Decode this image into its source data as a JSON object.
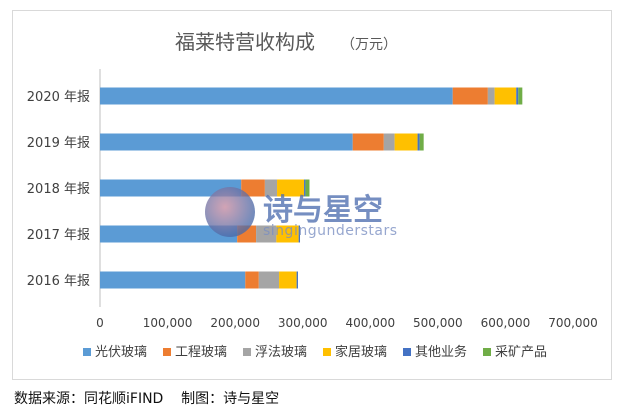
{
  "chart_data": {
    "type": "bar",
    "orientation": "horizontal",
    "stacked": true,
    "title": "福莱特营收构成",
    "title_unit": "（万元）",
    "categories": [
      "2020 年报",
      "2019 年报",
      "2018 年报",
      "2017 年报",
      "2016 年报"
    ],
    "series": [
      {
        "name": "光伏玻璃",
        "color": "#5b9bd5",
        "values": [
          522000,
          374000,
          209000,
          203000,
          215000
        ]
      },
      {
        "name": "工程玻璃",
        "color": "#ed7d31",
        "values": [
          52000,
          46000,
          35000,
          28000,
          20000
        ]
      },
      {
        "name": "浮法玻璃",
        "color": "#a5a5a5",
        "values": [
          10000,
          16000,
          18000,
          30000,
          30000
        ]
      },
      {
        "name": "家居玻璃",
        "color": "#ffc000",
        "values": [
          32000,
          34000,
          40000,
          33000,
          26000
        ]
      },
      {
        "name": "其他业务",
        "color": "#4472c4",
        "values": [
          3000,
          3000,
          2000,
          2000,
          2000
        ]
      },
      {
        "name": "采矿产品",
        "color": "#70ad47",
        "values": [
          6000,
          6000,
          6000,
          0,
          0
        ]
      }
    ],
    "xlim": [
      0,
      700000
    ],
    "xticks": [
      "0",
      "100,000",
      "200,000",
      "300,000",
      "400,000",
      "500,000",
      "600,000",
      "700,000"
    ],
    "grid": false,
    "legend_position": "bottom"
  },
  "watermark": {
    "title": "诗与星空",
    "subtitle": "singingunderstars"
  },
  "source_note": "数据来源：同花顺iFIND    制图：诗与星空"
}
